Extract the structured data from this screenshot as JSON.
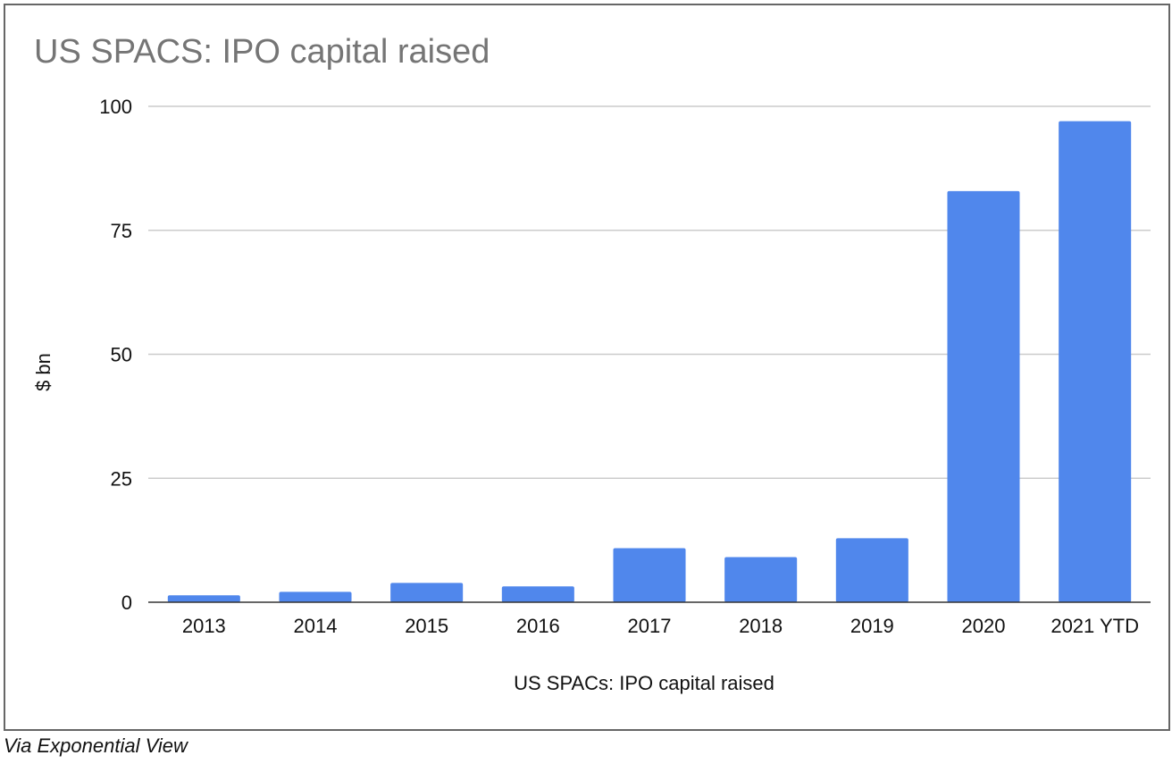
{
  "chart_data": {
    "type": "bar",
    "title": "US SPACS: IPO capital raised",
    "xlabel": "US SPACs: IPO capital raised",
    "ylabel": "$ bn",
    "categories": [
      "2013",
      "2014",
      "2015",
      "2016",
      "2017",
      "2018",
      "2019",
      "2020",
      "2021 YTD"
    ],
    "values": [
      1.4,
      2.1,
      3.9,
      3.2,
      10.9,
      9.1,
      12.9,
      82.9,
      97.0
    ],
    "ylim": [
      0,
      100
    ],
    "yticks": [
      0,
      25,
      50,
      75,
      100
    ],
    "grid": true,
    "legend": "none",
    "bar_color": "#5087ec"
  },
  "source": "Via Exponential View"
}
